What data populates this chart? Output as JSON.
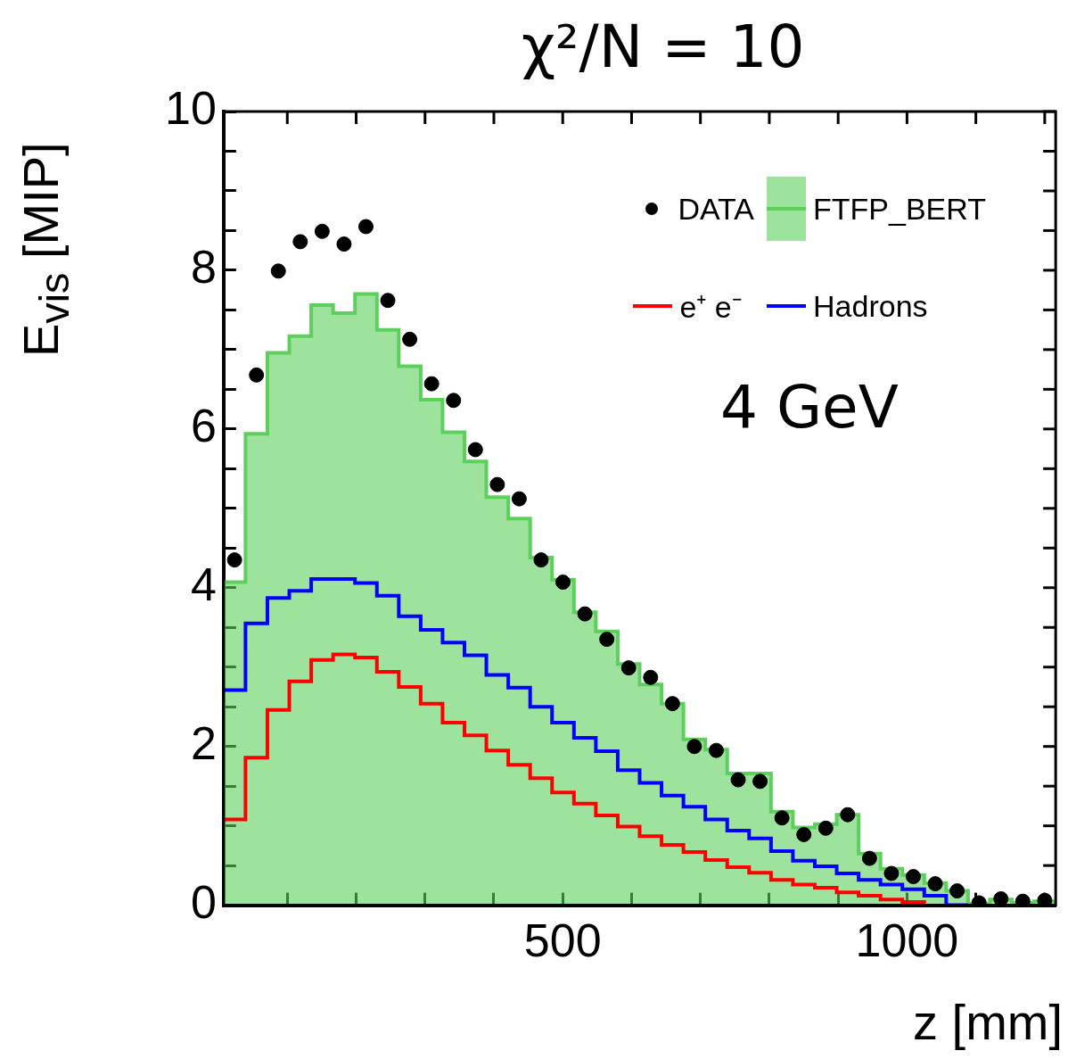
{
  "chart_data": {
    "type": "histogram",
    "title": "χ²/N = 10",
    "xlabel": "z [mm]",
    "ylabel": "E$_{vis}$ [MIP]",
    "annotations": [
      "4 GeV"
    ],
    "bins": [
      7.5,
      39.3,
      71.1,
      102.9,
      134.7,
      166.5,
      198.3,
      230.1,
      261.9,
      293.7,
      325.5,
      357.3,
      389.1,
      420.9,
      452.7,
      484.5,
      516.3,
      548.1,
      579.9,
      611.7,
      643.5,
      675.3,
      707.1,
      738.9,
      770.7,
      802.5,
      834.3,
      866.1,
      897.9,
      929.7,
      961.5,
      993.3,
      1025.1,
      1056.9,
      1088.7,
      1120.5,
      1152.3,
      1184.1,
      1215.9
    ],
    "series": [
      {
        "name": "DATA",
        "type": "scatter",
        "color": "#000000",
        "marker": "circle",
        "x": [
          23.4,
          55.2,
          87,
          118.8,
          150.6,
          182.4,
          214.2,
          246,
          277.8,
          309.6,
          341.4,
          373.2,
          405,
          436.8,
          468.6,
          500.4,
          532.2,
          564,
          595.8,
          627.6,
          659.4,
          691.2,
          723,
          754.8,
          786.6,
          818.4,
          850.2,
          882,
          913.8,
          945.6,
          977.4,
          1009.2,
          1041,
          1072.8,
          1104.6,
          1136.4,
          1168.2,
          1200
        ],
        "values": [
          4.35,
          6.68,
          7.99,
          8.36,
          8.49,
          8.33,
          8.55,
          7.62,
          7.13,
          6.57,
          6.36,
          5.74,
          5.3,
          5.12,
          4.35,
          4.07,
          3.67,
          3.35,
          2.99,
          2.87,
          2.54,
          2.0,
          1.95,
          1.58,
          1.56,
          1.1,
          0.89,
          0.97,
          1.14,
          0.59,
          0.4,
          0.36,
          0.27,
          0.18,
          0.03,
          0.08,
          0.05,
          0.06
        ]
      },
      {
        "name": "FTFP_BERT",
        "type": "histogram",
        "color": "#5ccf5c",
        "values": [
          4.07,
          5.94,
          6.96,
          7.17,
          7.56,
          7.46,
          7.7,
          7.25,
          6.79,
          6.37,
          5.96,
          5.59,
          5.14,
          4.87,
          4.38,
          4.1,
          3.69,
          3.45,
          3.04,
          2.78,
          2.54,
          2.09,
          1.96,
          1.66,
          1.66,
          1.18,
          0.98,
          1.02,
          1.14,
          0.65,
          0.46,
          0.38,
          0.28,
          0.18,
          0.02,
          0.07,
          0.03,
          0.05
        ]
      },
      {
        "name": "e⁺ e⁻",
        "type": "step",
        "color": "#ff0000",
        "x": [
          7.5,
          39.3,
          71.1,
          102.9,
          134.7,
          166.5,
          198.3,
          230.1,
          261.9,
          293.7,
          325.5,
          357.3,
          389.1,
          420.9,
          452.7,
          484.5,
          516.3,
          548.1,
          579.9,
          611.7,
          643.5,
          675.3,
          707.1,
          738.9,
          770.7,
          802.5,
          834.3,
          866.1,
          897.9,
          929.7,
          961.5,
          993.3,
          1025.1
        ],
        "values": [
          1.08,
          1.86,
          2.46,
          2.82,
          3.09,
          3.16,
          3.12,
          2.94,
          2.75,
          2.54,
          2.3,
          2.14,
          1.95,
          1.77,
          1.6,
          1.42,
          1.28,
          1.13,
          0.99,
          0.87,
          0.76,
          0.67,
          0.57,
          0.48,
          0.41,
          0.32,
          0.26,
          0.22,
          0.16,
          0.12,
          0.07,
          0.04,
          0.02
        ]
      },
      {
        "name": "Hadrons",
        "type": "step",
        "color": "#0000ff",
        "x": [
          7.5,
          39.3,
          71.1,
          102.9,
          134.7,
          166.5,
          198.3,
          230.1,
          261.9,
          293.7,
          325.5,
          357.3,
          389.1,
          420.9,
          452.7,
          484.5,
          516.3,
          548.1,
          579.9,
          611.7,
          643.5,
          675.3,
          707.1,
          738.9,
          770.7,
          802.5,
          834.3,
          866.1,
          897.9,
          929.7,
          961.5,
          993.3,
          1025.1,
          1056.9,
          1088.7
        ],
        "values": [
          2.71,
          3.55,
          3.87,
          3.96,
          4.11,
          4.11,
          4.06,
          3.9,
          3.64,
          3.47,
          3.31,
          3.15,
          2.9,
          2.74,
          2.5,
          2.3,
          2.11,
          1.94,
          1.7,
          1.54,
          1.38,
          1.24,
          1.08,
          0.94,
          0.84,
          0.68,
          0.56,
          0.49,
          0.4,
          0.32,
          0.26,
          0.2,
          0.12,
          0,
          0
        ]
      }
    ],
    "xlim": [
      7.5,
      1215.9
    ],
    "xticks": [
      {
        "value": 100,
        "label": null
      },
      {
        "value": 200,
        "label": null
      },
      {
        "value": 300,
        "label": null
      },
      {
        "value": 400,
        "label": null
      },
      500,
      {
        "value": 600,
        "label": null
      },
      {
        "value": 700,
        "label": null
      },
      {
        "value": 800,
        "label": null
      },
      {
        "value": 900,
        "label": null
      },
      1000,
      {
        "value": 1100,
        "label": null
      },
      {
        "value": 1200,
        "label": null
      }
    ],
    "ylim": [
      0,
      10
    ],
    "yticks": [
      0,
      {
        "value": 0.5,
        "label": null
      },
      {
        "value": 1,
        "label": null
      },
      {
        "value": 1.5,
        "label": null
      },
      2,
      {
        "value": 2.5,
        "label": null
      },
      {
        "value": 3,
        "label": null
      },
      {
        "value": 3.5,
        "label": null
      },
      4,
      {
        "value": 4.5,
        "label": null
      },
      {
        "value": 5,
        "label": null
      },
      {
        "value": 5.5,
        "label": null
      },
      6,
      {
        "value": 6.5,
        "label": null
      },
      {
        "value": 7,
        "label": null
      },
      {
        "value": 7.5,
        "label": null
      },
      8,
      {
        "value": 8.5,
        "label": null
      },
      {
        "value": 9,
        "label": null
      },
      {
        "value": 9.5,
        "label": null
      },
      10
    ],
    "legend": "top right"
  }
}
